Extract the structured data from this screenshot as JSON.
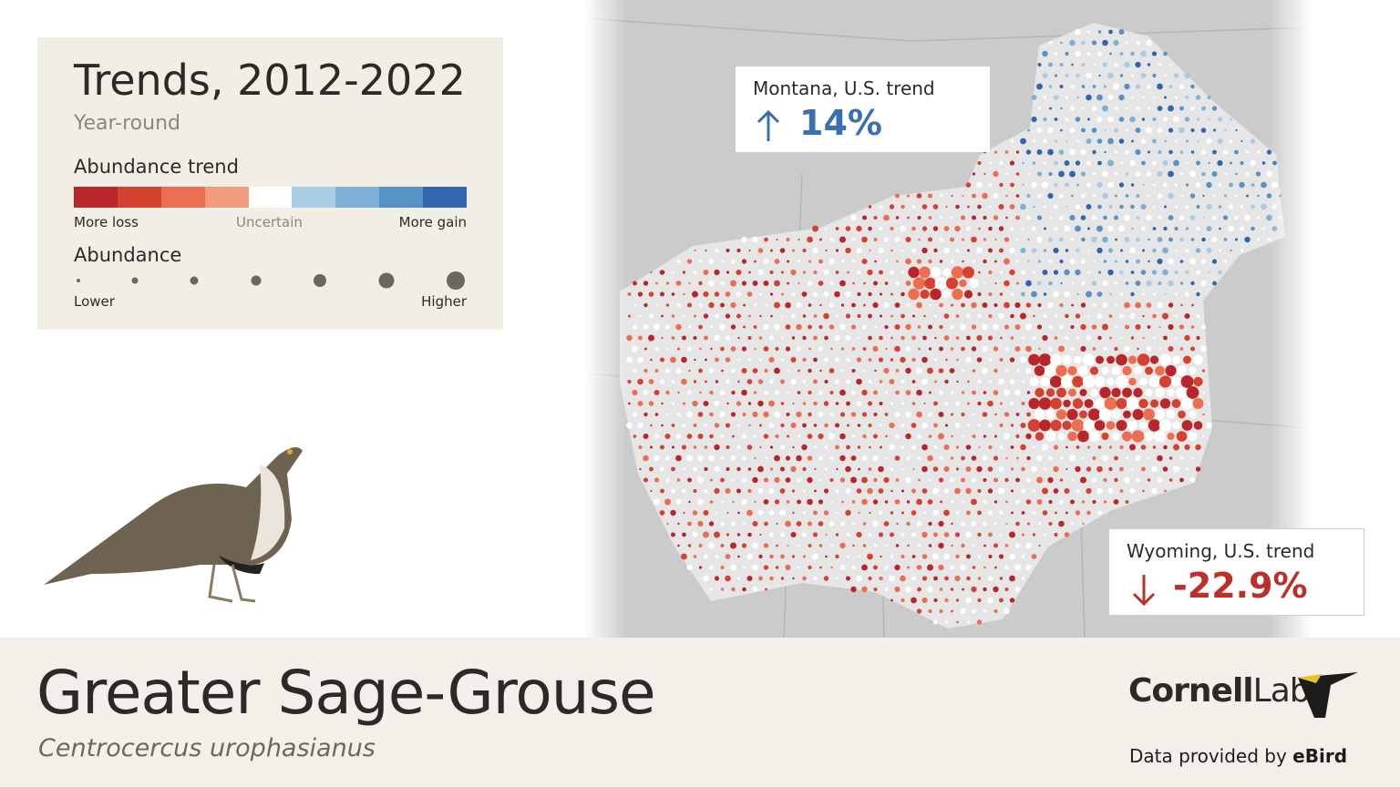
{
  "legend": {
    "title": "Trends, 2012-2022",
    "season": "Year-round",
    "trend_heading": "Abundance trend",
    "trend_colors": [
      "#b8262a",
      "#d6412f",
      "#ea6e4f",
      "#f39b7e",
      "#ffffff",
      "#a9cbe3",
      "#7eb0d6",
      "#5792c7",
      "#2f66ad"
    ],
    "trend_low": "More loss",
    "trend_mid": "Uncertain",
    "trend_high": "More gain",
    "abundance_heading": "Abundance",
    "abundance_low": "Lower",
    "abundance_high": "Higher"
  },
  "callouts": [
    {
      "label": "Montana, U.S. trend",
      "value": "14%",
      "color": "#3a6fb0"
    },
    {
      "label": "Wyoming, U.S. trend",
      "value": "-22.9%",
      "color": "#b8312a"
    }
  ],
  "species": {
    "common_name": "Greater Sage-Grouse",
    "scientific_name": "Centrocercus urophasianus"
  },
  "branding": {
    "logo_bold": "Cornell",
    "logo_light": "Lab",
    "credit_prefix": "Data provided by",
    "credit_source": "eBird"
  }
}
